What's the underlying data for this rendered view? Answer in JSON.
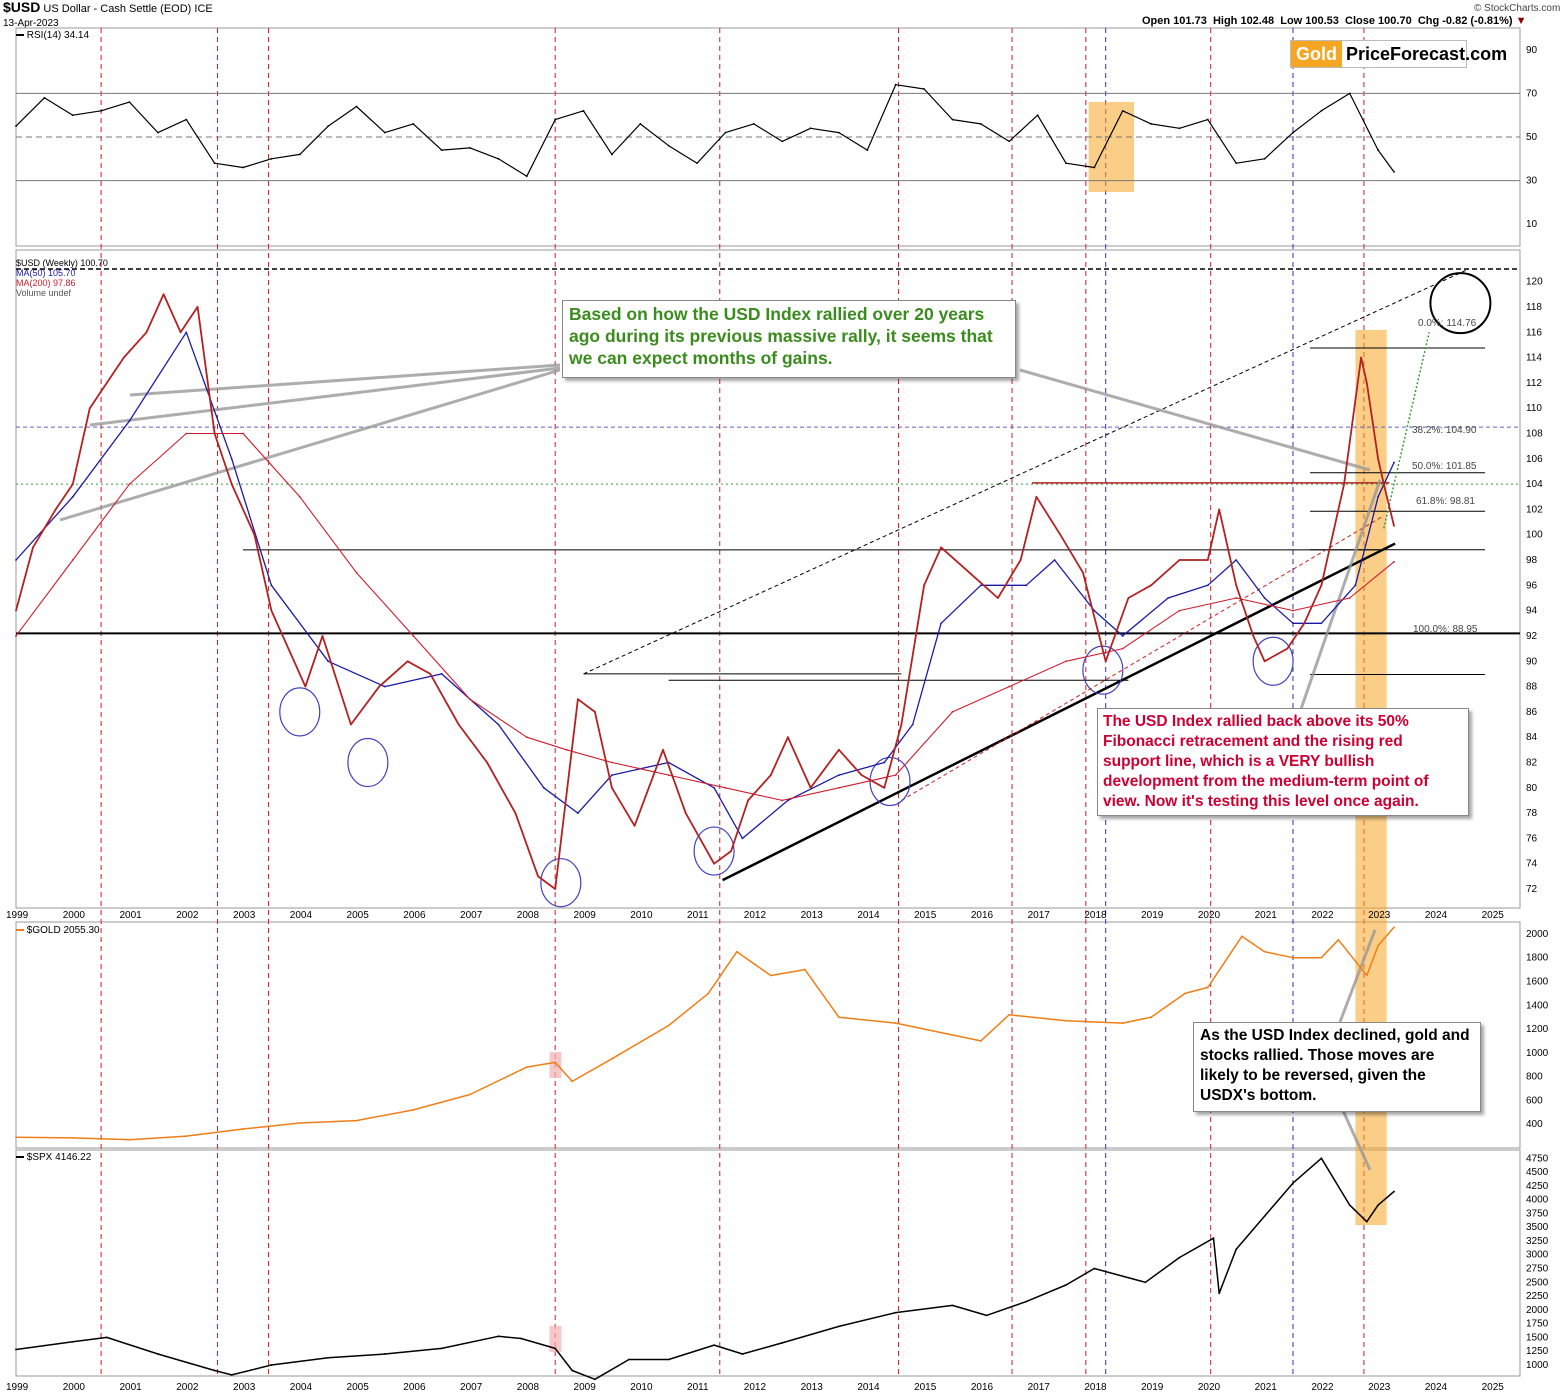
{
  "header": {
    "symbol": "$USD",
    "description": "US Dollar - Cash Settle (EOD) ICE",
    "date": "13-Apr-2023",
    "open": "Open 101.73",
    "high": "High 102.48",
    "low": "Low 100.53",
    "close": "Close 100.70",
    "chg": "Chg -0.82 (-0.81%)",
    "credit": "© StockCharts.com"
  },
  "logo": {
    "gold": "Gold",
    "rest": "PriceForecast.com"
  },
  "legend": {
    "rsi": "RSI(14) 34.14",
    "usd": "$USD (Weekly) 100.70",
    "ma50": "MA(50) 105.70",
    "ma200": "MA(200) 97.86",
    "volume": "Volume undef",
    "gold": "$GOLD 2055.30",
    "spx": "$SPX 4146.22"
  },
  "colors": {
    "usd_up": "#000000",
    "usd_down": "#b22222",
    "ma50": "#1a1aa6",
    "ma200": "#d01c2c",
    "gold": "#f07e16",
    "spx": "#000000",
    "highlight": "#f5a623",
    "rsi_fill": "#5b7f4f",
    "vline_red": "#cc2020",
    "vline_blue": "#3030aa",
    "annotation_green": "#3b8c1e",
    "annotation_red": "#cc0033"
  },
  "annotations": {
    "green": "Based on how the USD Index rallied over 20 years ago during its previous massive rally, it seems that we can expect months of gains.",
    "red": "The USD Index rallied back above its 50% Fibonacci retracement and the rising red support line, which is a VERY bullish development from the medium-term point of view. Now it's testing this level once again.",
    "black": "As the USD Index declined, gold and stocks rallied. Those moves are likely to be reversed, given the USDX's bottom."
  },
  "fib_levels": [
    {
      "label": "0.0%: 114.76"
    },
    {
      "label": "38.2%: 104.90"
    },
    {
      "label": "50.0%: 101.85"
    },
    {
      "label": "61.8%: 98.81"
    },
    {
      "label": "100.0%: 88.95"
    }
  ],
  "chart_data": [
    {
      "type": "line",
      "panel": "RSI",
      "ylabel": "",
      "ylim": [
        0,
        100
      ],
      "yticks": [
        10,
        30,
        50,
        70,
        90
      ],
      "reference_lines": [
        30,
        50,
        70
      ],
      "series": [
        {
          "name": "RSI(14)",
          "x": [
            1999.0,
            1999.5,
            2000.0,
            2000.5,
            2001.0,
            2001.5,
            2002.0,
            2002.5,
            2003.0,
            2003.5,
            2004.0,
            2004.5,
            2005.0,
            2005.5,
            2006.0,
            2006.5,
            2007.0,
            2007.5,
            2008.0,
            2008.5,
            2009.0,
            2009.5,
            2010.0,
            2010.5,
            2011.0,
            2011.5,
            2012.0,
            2012.5,
            2013.0,
            2013.5,
            2014.0,
            2014.5,
            2015.0,
            2015.5,
            2016.0,
            2016.5,
            2017.0,
            2017.5,
            2018.0,
            2018.5,
            2019.0,
            2019.5,
            2020.0,
            2020.5,
            2021.0,
            2021.5,
            2022.0,
            2022.5,
            2023.0,
            2023.28
          ],
          "values": [
            55,
            68,
            60,
            62,
            66,
            52,
            58,
            38,
            36,
            40,
            42,
            55,
            64,
            52,
            56,
            44,
            45,
            40,
            32,
            58,
            62,
            42,
            56,
            46,
            38,
            52,
            56,
            48,
            54,
            52,
            44,
            74,
            72,
            58,
            56,
            48,
            60,
            38,
            36,
            62,
            56,
            54,
            58,
            38,
            40,
            52,
            62,
            70,
            44,
            34
          ]
        }
      ]
    },
    {
      "type": "line",
      "panel": "USD",
      "ylabel": "",
      "ylim": [
        70.5,
        122.5
      ],
      "yticks": [
        72,
        74,
        76,
        78,
        80,
        82,
        84,
        86,
        88,
        90,
        92,
        94,
        96,
        98,
        100,
        102,
        104,
        106,
        108,
        110,
        112,
        114,
        116,
        118,
        120
      ],
      "xticks": [
        "1999",
        "2000",
        "2001",
        "2002",
        "2003",
        "2004",
        "2005",
        "2006",
        "2007",
        "2008",
        "2009",
        "2010",
        "2011",
        "2012",
        "2013",
        "2014",
        "2015",
        "2016",
        "2017",
        "2018",
        "2019",
        "2020",
        "2021",
        "2022",
        "2023",
        "2024",
        "2025"
      ],
      "horizontal_lines": [
        92.2,
        121,
        108.5
      ],
      "series": [
        {
          "name": "$USD",
          "x": [
            1999.0,
            1999.3,
            1999.7,
            2000.0,
            2000.3,
            2000.6,
            2000.9,
            2001.3,
            2001.6,
            2001.9,
            2002.2,
            2002.5,
            2002.8,
            2003.2,
            2003.5,
            2003.9,
            2004.1,
            2004.4,
            2004.9,
            2005.4,
            2005.9,
            2006.3,
            2006.8,
            2007.3,
            2007.8,
            2008.2,
            2008.5,
            2008.9,
            2009.2,
            2009.5,
            2009.9,
            2010.4,
            2010.8,
            2011.3,
            2011.6,
            2011.9,
            2012.3,
            2012.6,
            2013.0,
            2013.5,
            2013.9,
            2014.3,
            2014.6,
            2015.0,
            2015.3,
            2015.8,
            2016.3,
            2016.7,
            2016.98,
            2017.4,
            2017.8,
            2018.2,
            2018.6,
            2019.0,
            2019.5,
            2020.0,
            2020.2,
            2020.5,
            2020.8,
            2021.0,
            2021.4,
            2021.7,
            2022.0,
            2022.4,
            2022.7,
            2022.8,
            2023.0,
            2023.1,
            2023.28
          ],
          "values": [
            94,
            99,
            102,
            104,
            110,
            112,
            114,
            116,
            119,
            116,
            118,
            108,
            104,
            100,
            94,
            90,
            88,
            92,
            85,
            88,
            90,
            89,
            85,
            82,
            78,
            73,
            72,
            87,
            86,
            80,
            77,
            83,
            78,
            74,
            75,
            79,
            81,
            84,
            80,
            83,
            81,
            80,
            85,
            96,
            99,
            97,
            95,
            98,
            103,
            100,
            97,
            90,
            95,
            96,
            98,
            98,
            102,
            96,
            92,
            90,
            91,
            93,
            96,
            104,
            114,
            112,
            106,
            104,
            100.7
          ]
        },
        {
          "name": "MA(50)",
          "x": [
            1999.0,
            2000.0,
            2001.0,
            2002.0,
            2002.8,
            2003.5,
            2004.5,
            2005.5,
            2006.5,
            2007.5,
            2008.3,
            2008.9,
            2009.5,
            2010.5,
            2011.3,
            2011.8,
            2012.6,
            2013.5,
            2014.3,
            2014.8,
            2015.3,
            2016.0,
            2016.8,
            2017.3,
            2018.0,
            2018.5,
            2019.3,
            2020.0,
            2020.5,
            2021.0,
            2021.5,
            2022.0,
            2022.6,
            2023.0,
            2023.28
          ],
          "values": [
            98,
            103,
            109,
            116,
            106,
            96,
            90,
            88,
            89,
            85,
            80,
            78,
            81,
            82,
            80,
            76,
            79,
            81,
            82,
            85,
            93,
            96,
            96,
            98,
            94,
            92,
            95,
            96,
            98,
            95,
            93,
            93,
            96,
            103,
            105.7
          ]
        },
        {
          "name": "MA(200)",
          "x": [
            1999.0,
            2000.0,
            2001.0,
            2002.0,
            2003.0,
            2004.0,
            2005.0,
            2006.0,
            2007.0,
            2008.0,
            2008.7,
            2009.5,
            2010.5,
            2011.5,
            2012.5,
            2013.5,
            2014.5,
            2015.5,
            2016.5,
            2017.5,
            2018.5,
            2019.5,
            2020.5,
            2021.5,
            2022.5,
            2023.28
          ],
          "values": [
            92,
            98,
            104,
            108,
            108,
            103,
            97,
            92,
            87,
            84,
            83,
            82,
            81,
            80,
            79,
            80,
            81,
            86,
            88,
            90,
            91,
            94,
            95,
            94,
            95,
            97.86
          ]
        }
      ]
    },
    {
      "type": "line",
      "panel": "GOLD",
      "ylabel": "",
      "ylim": [
        200,
        2100
      ],
      "yticks": [
        400,
        600,
        800,
        1000,
        1200,
        1400,
        1600,
        1800,
        2000
      ],
      "series": [
        {
          "name": "$GOLD",
          "x": [
            1999.0,
            2000.0,
            2001.0,
            2002.0,
            2003.0,
            2004.0,
            2005.0,
            2006.0,
            2007.0,
            2008.0,
            2008.5,
            2008.8,
            2009.5,
            2010.5,
            2011.2,
            2011.7,
            2012.3,
            2012.9,
            2013.5,
            2014.5,
            2015.5,
            2016.0,
            2016.5,
            2017.5,
            2018.5,
            2019.0,
            2019.6,
            2020.0,
            2020.6,
            2021.0,
            2021.5,
            2022.0,
            2022.3,
            2022.8,
            2023.0,
            2023.28
          ],
          "values": [
            290,
            285,
            270,
            300,
            360,
            410,
            430,
            520,
            650,
            880,
            920,
            760,
            950,
            1230,
            1500,
            1850,
            1650,
            1700,
            1300,
            1250,
            1150,
            1100,
            1320,
            1270,
            1250,
            1300,
            1500,
            1550,
            1980,
            1850,
            1800,
            1800,
            1950,
            1650,
            1900,
            2055.3
          ]
        }
      ]
    },
    {
      "type": "line",
      "panel": "SPX",
      "ylabel": "",
      "ylim": [
        800,
        4900
      ],
      "yticks": [
        1000,
        1250,
        1500,
        1750,
        2000,
        2250,
        2500,
        2750,
        3000,
        3250,
        3500,
        3750,
        4000,
        4250,
        4500,
        4750
      ],
      "series": [
        {
          "name": "$SPX",
          "x": [
            1999.0,
            2000.0,
            2000.6,
            2001.5,
            2002.5,
            2002.8,
            2003.5,
            2004.5,
            2005.5,
            2006.5,
            2007.5,
            2007.9,
            2008.5,
            2008.8,
            2009.2,
            2009.8,
            2010.5,
            2011.3,
            2011.8,
            2012.5,
            2013.5,
            2014.5,
            2015.5,
            2016.1,
            2016.8,
            2017.5,
            2018.0,
            2018.9,
            2019.5,
            2020.1,
            2020.2,
            2020.5,
            2021.0,
            2021.5,
            2022.0,
            2022.5,
            2022.8,
            2023.0,
            2023.28
          ],
          "values": [
            1280,
            1420,
            1500,
            1200,
            900,
            820,
            1000,
            1130,
            1200,
            1300,
            1520,
            1480,
            1300,
            900,
            740,
            1100,
            1100,
            1360,
            1200,
            1400,
            1700,
            1950,
            2080,
            1900,
            2150,
            2450,
            2750,
            2500,
            2950,
            3300,
            2300,
            3100,
            3700,
            4300,
            4750,
            3900,
            3600,
            3900,
            4146.22
          ]
        }
      ]
    }
  ]
}
